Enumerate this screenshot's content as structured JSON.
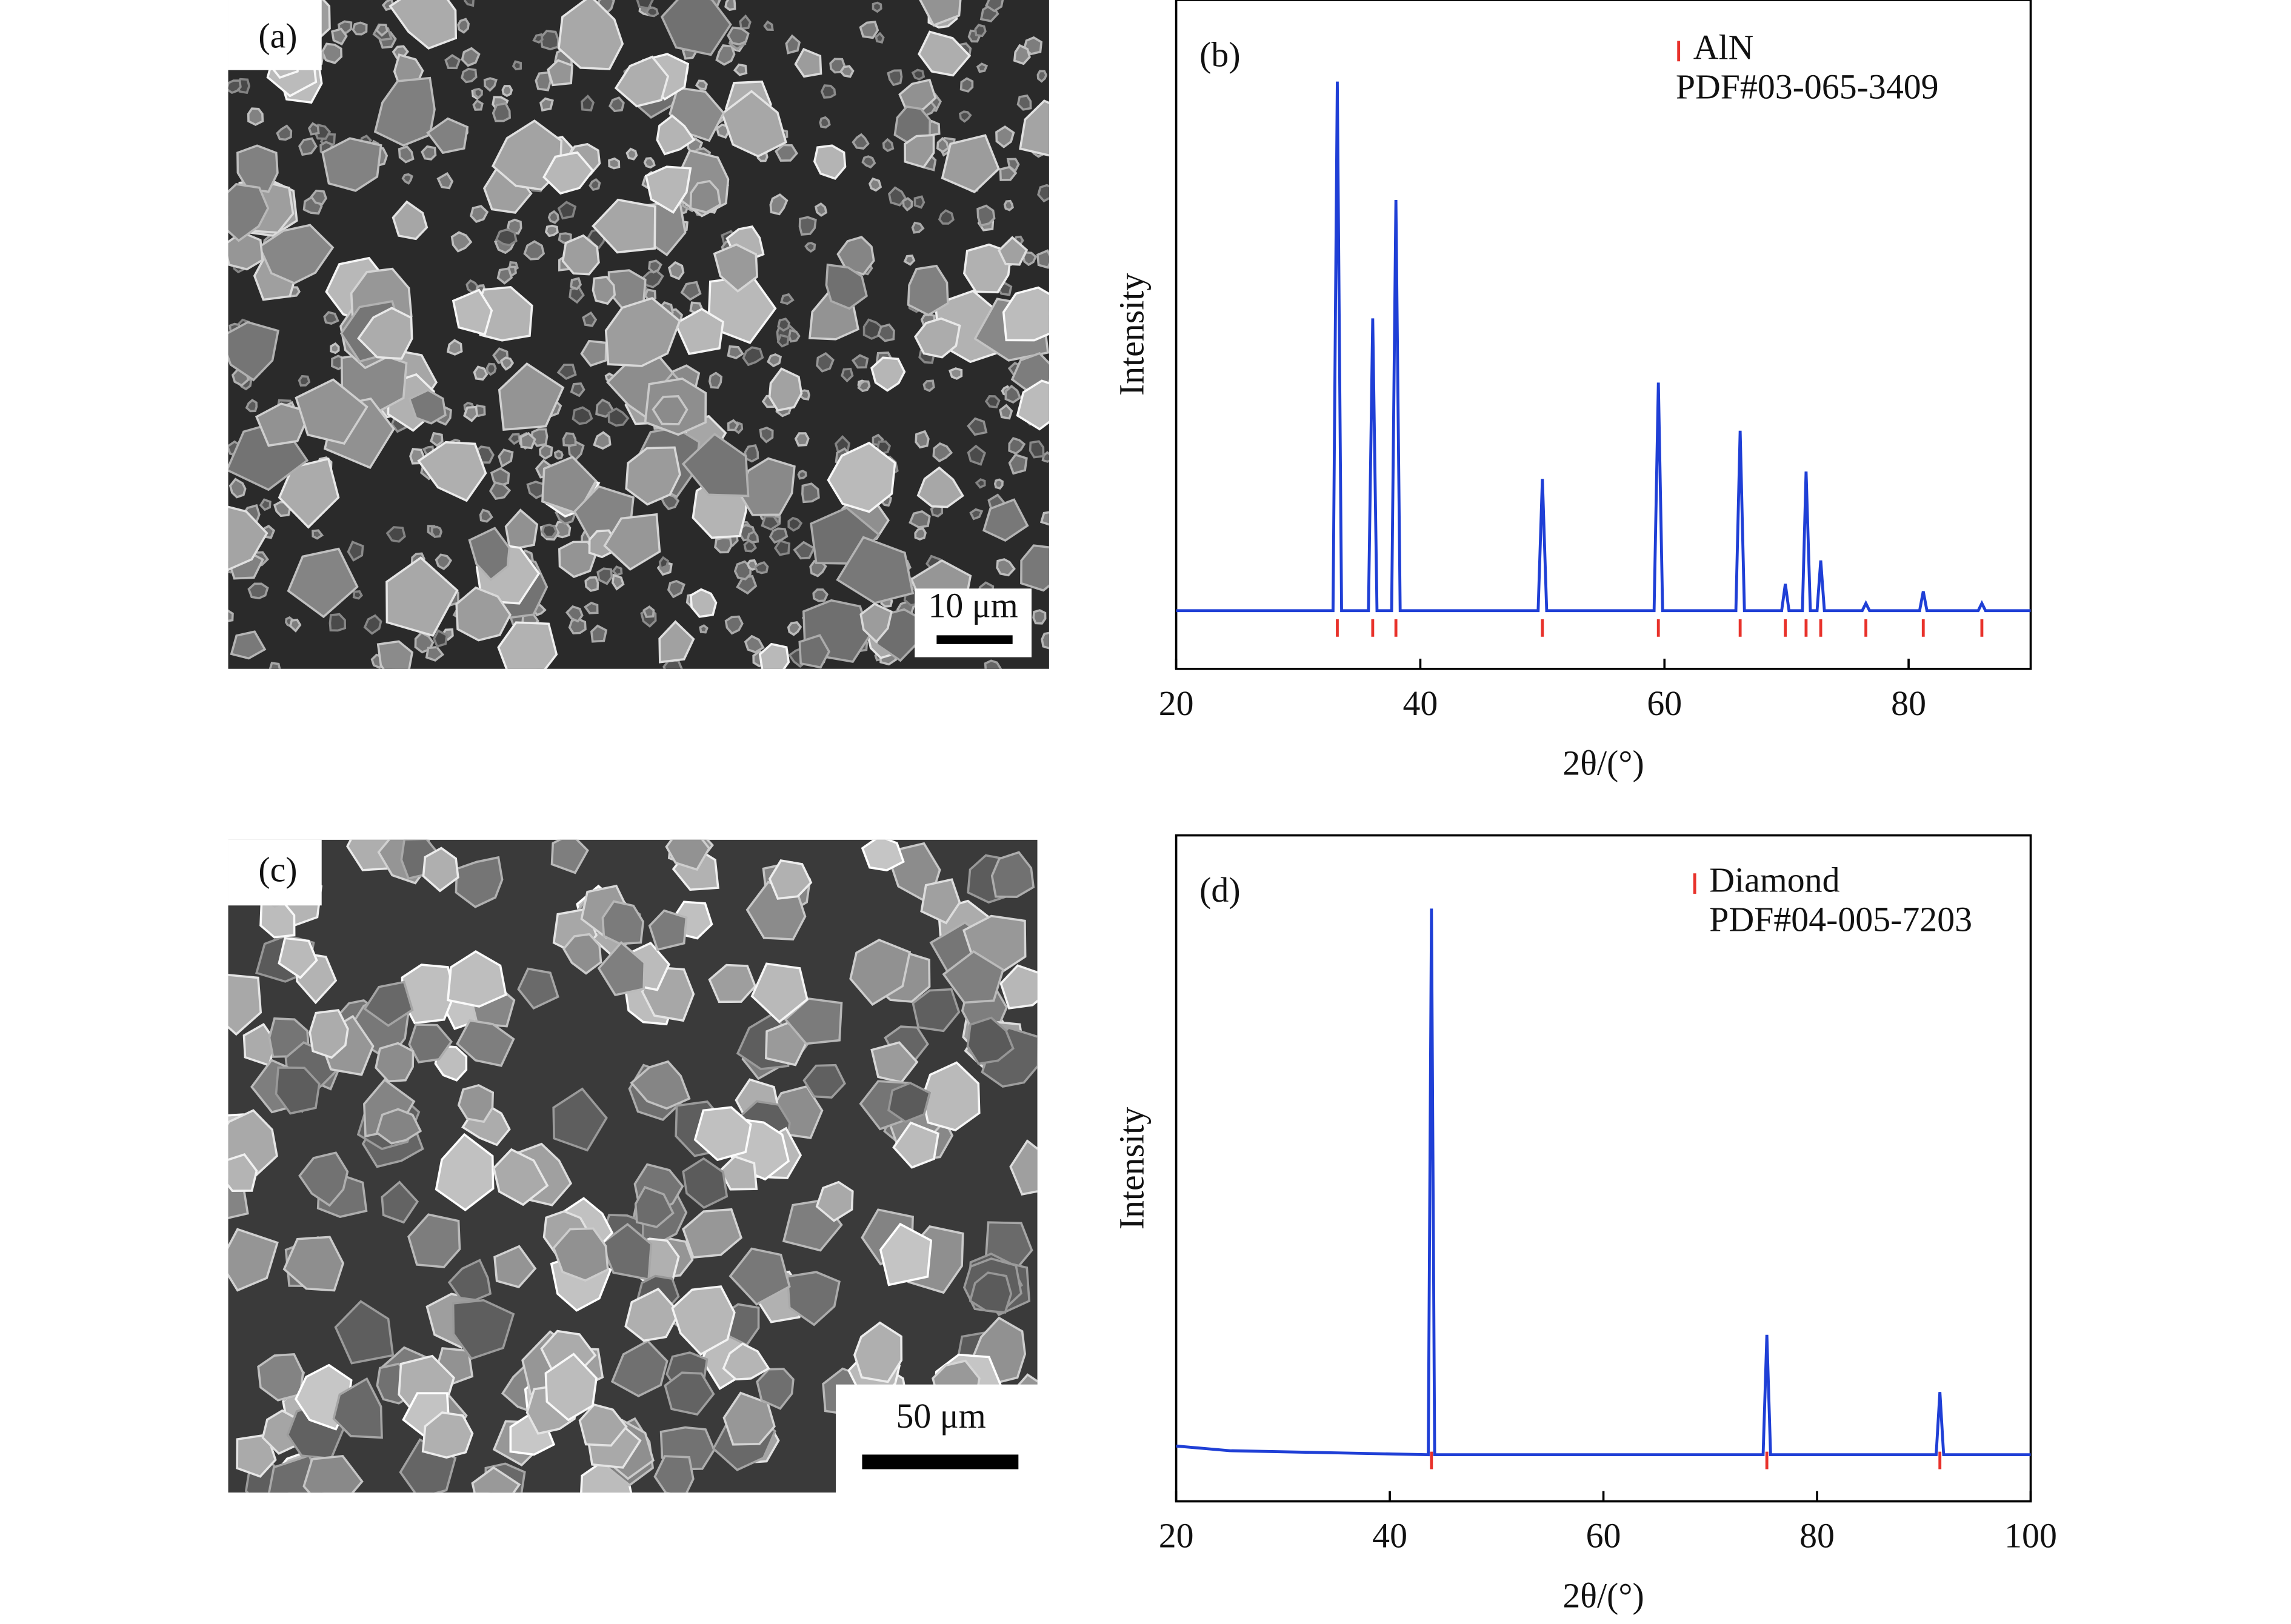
{
  "panels": [
    {
      "label": "(a)",
      "scale_bar": "10 μm"
    },
    {
      "label": "(c)",
      "scale_bar": "50 μm"
    }
  ],
  "chart_data": [
    {
      "type": "line",
      "label": "(b)",
      "x_label": "2θ/(°)",
      "y_label": "Intensity",
      "xlim": [
        20,
        90
      ],
      "xticks": [
        20,
        40,
        60,
        80
      ],
      "ylim": [
        0,
        100
      ],
      "series": [
        {
          "color": "#1f3fd6",
          "x": [
            20,
            32.85,
            33.2,
            33.55,
            35.75,
            36.1,
            36.45,
            37.65,
            38.0,
            38.35,
            49.65,
            50.0,
            50.35,
            59.15,
            59.5,
            59.85,
            65.85,
            66.2,
            66.55,
            69.6,
            69.9,
            70.2,
            71.3,
            71.6,
            71.95,
            72.5,
            72.8,
            73.1,
            76.2,
            76.5,
            76.8,
            80.9,
            81.2,
            81.5,
            85.7,
            86.0,
            86.3,
            90
          ],
          "values": [
            8.7,
            8.7,
            87.8,
            8.7,
            8.7,
            52.4,
            8.7,
            8.7,
            70.1,
            8.7,
            8.7,
            28.4,
            8.7,
            8.7,
            42.8,
            8.7,
            8.7,
            35.6,
            8.7,
            8.7,
            12.7,
            8.7,
            8.7,
            29.5,
            8.7,
            8.7,
            16.2,
            8.7,
            8.7,
            9.8,
            8.7,
            8.7,
            11.6,
            8.7,
            8.7,
            9.8,
            8.7,
            8.7
          ]
        }
      ],
      "reference": {
        "name": "AlN",
        "card": "PDF#03-065-3409",
        "color": "#e8322b",
        "x": [
          33.2,
          36.1,
          38.0,
          50.0,
          59.5,
          66.2,
          69.9,
          71.6,
          72.8,
          76.5,
          81.2,
          86.0
        ]
      }
    },
    {
      "type": "line",
      "label": "(d)",
      "x_label": "2θ/(°)",
      "y_label": "Intensity",
      "xlim": [
        20,
        100
      ],
      "xticks": [
        20,
        40,
        60,
        80,
        100
      ],
      "ylim": [
        0,
        100
      ],
      "series": [
        {
          "color": "#1f3fd6",
          "x": [
            20,
            25,
            43.6,
            43.9,
            44.2,
            74.95,
            75.3,
            75.65,
            91.15,
            91.5,
            91.85,
            100
          ],
          "values": [
            8.3,
            7.6,
            7.0,
            89.0,
            7.0,
            7.0,
            25.0,
            7.0,
            7.0,
            16.4,
            7.0,
            7.0
          ]
        }
      ],
      "reference": {
        "name": "Diamond",
        "card": "PDF#04-005-7203",
        "color": "#e8322b",
        "x": [
          43.9,
          75.3,
          91.5
        ]
      }
    }
  ]
}
